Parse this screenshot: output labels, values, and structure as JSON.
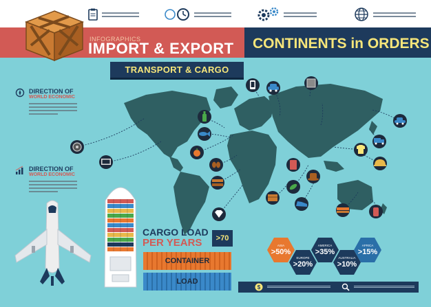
{
  "header": {
    "infographics_label": "INFOGRAPHICS",
    "main_title": "IMPORT & EXPORT",
    "right_title": "CONTINENTS in ORDERS",
    "subtitle": "TRANSPORT & CARGO",
    "top_icons": [
      "clipboard-icon",
      "clock-icon",
      "gears-icon",
      "globe-icon"
    ]
  },
  "left_panel": {
    "blocks": [
      {
        "title": "DIRECTION OF",
        "subtitle": "WORLD ECONOMIC",
        "icon": "compass-icon"
      },
      {
        "title": "DIRECTION OF",
        "subtitle": "WORLD ECONOMIC",
        "icon": "bar-chart-icon"
      }
    ]
  },
  "cargo": {
    "title_line1": "CARGO LOAD",
    "title_line2": "PER YEARS",
    "value": ">70",
    "container_label": "CONTAINER",
    "load_label": "LOAD"
  },
  "continents": [
    {
      "name": "ASIA",
      "value": ">50%",
      "color": "#e8782f"
    },
    {
      "name": "EUROPE",
      "value": ">20%",
      "color": "#1d3a5c"
    },
    {
      "name": "AMERICA",
      "value": ">35%",
      "color": "#1d3a5c"
    },
    {
      "name": "AUSTRALIA",
      "value": ">10%",
      "color": "#1d3a5c"
    },
    {
      "name": "AFRICA",
      "value": ">15%",
      "color": "#2a6fa8"
    }
  ],
  "map_icons": [
    "phone-icon",
    "car-icon",
    "chip-icon",
    "bottle-icon",
    "fish-icon",
    "tire-icon",
    "tv-icon",
    "fruit-icon",
    "coffee-icon",
    "wood-icon",
    "diamond-icon",
    "fuel-icon",
    "hat-icon",
    "leaf-icon",
    "box-icon",
    "shoe-icon",
    "lumber-icon",
    "fire-extinguisher-icon",
    "shirt-icon",
    "truck-icon",
    "helmet-icon",
    "sedan-icon"
  ],
  "bottom_bar": {
    "icons": [
      "dollar-icon",
      "search-icon"
    ]
  },
  "colors": {
    "background": "#7fd0d8",
    "map": "#2f5f62",
    "red_banner": "#d25a55",
    "navy": "#1d3a5c",
    "yellow_text": "#f7e67a",
    "orange_container": "#e8782f",
    "blue_container": "#3a89c9"
  }
}
